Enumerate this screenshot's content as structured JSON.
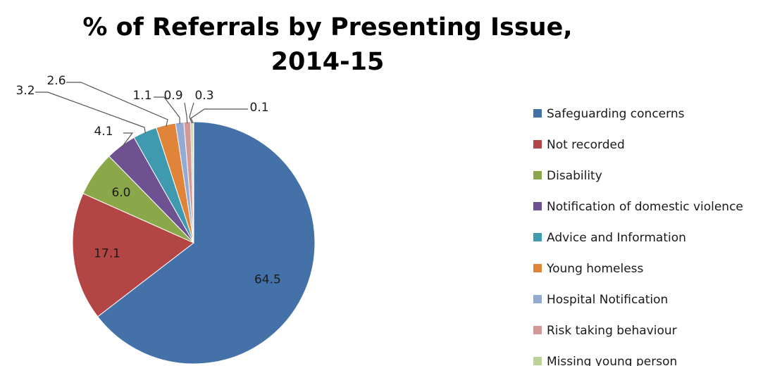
{
  "chart_data": {
    "type": "pie",
    "title": "% of Referrals by Presenting Issue,",
    "subtitle": "2014-15",
    "slices": [
      {
        "label": "Safeguarding concerns",
        "value": 64.5,
        "value_label": "64.5",
        "color": "#4472a8"
      },
      {
        "label": "Not recorded",
        "value": 17.1,
        "value_label": "17.1",
        "color": "#b34644"
      },
      {
        "label": "Disability",
        "value": 6.0,
        "value_label": "6.0",
        "color": "#8aa84a"
      },
      {
        "label": "Notification of domestic violence",
        "value": 4.1,
        "value_label": "4.1",
        "color": "#6e5190"
      },
      {
        "label": "Advice and Information",
        "value": 3.2,
        "value_label": "3.2",
        "color": "#3f9ab0"
      },
      {
        "label": "Young homeless",
        "value": 2.6,
        "value_label": "2.6",
        "color": "#e0843a"
      },
      {
        "label": "Hospital Notification",
        "value": 1.1,
        "value_label": "1.1",
        "color": "#93aad3"
      },
      {
        "label": "Risk taking behaviour",
        "value": 0.9,
        "value_label": "0.9",
        "color": "#d49897"
      },
      {
        "label": "Missing young person",
        "value": 0.3,
        "value_label": "0.3",
        "color": "#b9d296"
      },
      {
        "label": "",
        "value": 0.1,
        "value_label": "0.1",
        "color": "#a798c2"
      }
    ],
    "legend_position": "right",
    "start_angle": "12 o'clock, clockwise"
  }
}
